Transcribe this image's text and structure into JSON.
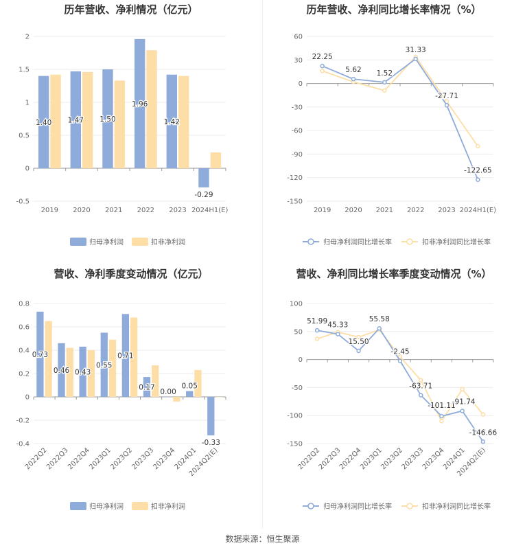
{
  "source": "数据来源：恒生聚源",
  "colors": {
    "blue": "#8eabd9",
    "orange": "#fddea6",
    "grid": "#ebebeb",
    "axis": "#999999"
  },
  "chart_data": [
    {
      "id": "annual-bar",
      "type": "bar",
      "title": "历年营收、净利情况（亿元）",
      "categories": [
        "2019",
        "2020",
        "2021",
        "2022",
        "2023",
        "2024H1(E)"
      ],
      "ylim": [
        -0.5,
        2
      ],
      "yticks": [
        2,
        1.5,
        1,
        0.5,
        0,
        -0.5
      ],
      "series": [
        {
          "name": "归母净利润",
          "color": "#8eabd9",
          "values": [
            1.4,
            1.47,
            1.5,
            1.96,
            1.42,
            -0.29
          ],
          "labels": [
            "1.40",
            "1.47",
            "1.50",
            "1.96",
            "1.42",
            "-0.29"
          ]
        },
        {
          "name": "扣非净利润",
          "color": "#fddea6",
          "values": [
            1.42,
            1.46,
            1.33,
            1.79,
            1.4,
            0.24
          ]
        }
      ]
    },
    {
      "id": "annual-line",
      "type": "line",
      "title": "历年营收、净利同比增长率情况（%）",
      "categories": [
        "2019",
        "2020",
        "2021",
        "2022",
        "2023",
        "2024H1(E)"
      ],
      "ylim": [
        -150,
        60
      ],
      "yticks": [
        60,
        30,
        0,
        -30,
        -60,
        -90,
        -120,
        -150
      ],
      "series": [
        {
          "name": "归母净利润同比增长率",
          "color": "#8eabd9",
          "values": [
            22.25,
            5.62,
            1.52,
            31.33,
            -27.71,
            -122.65
          ],
          "labels": [
            "22.25",
            "5.62",
            "1.52",
            "31.33",
            "-27.71",
            "-122.65"
          ]
        },
        {
          "name": "扣非净利润同比增长率",
          "color": "#fddea6",
          "values": [
            16,
            2,
            -9,
            34,
            -23,
            -80
          ]
        }
      ]
    },
    {
      "id": "quarter-bar",
      "type": "bar",
      "title": "营收、净利季度变动情况（亿元）",
      "categories": [
        "2022Q2",
        "2022Q3",
        "2022Q4",
        "2023Q1",
        "2023Q2",
        "2023Q3",
        "2023Q4",
        "2024Q1",
        "2024Q2(E)"
      ],
      "ylim": [
        -0.4,
        0.8
      ],
      "yticks": [
        0.8,
        0.6,
        0.4,
        0.2,
        0,
        -0.2,
        -0.4
      ],
      "series": [
        {
          "name": "归母净利润",
          "color": "#8eabd9",
          "values": [
            0.73,
            0.46,
            0.43,
            0.55,
            0.71,
            0.17,
            0.0,
            0.05,
            -0.33
          ],
          "labels": [
            "0.73",
            "0.46",
            "0.43",
            "0.55",
            "0.71",
            "0.17",
            "0.00",
            "0.05",
            "-0.33"
          ]
        },
        {
          "name": "扣非净利润",
          "color": "#fddea6",
          "values": [
            0.65,
            0.42,
            0.4,
            0.49,
            0.68,
            0.27,
            -0.04,
            0.23,
            0.0
          ]
        }
      ]
    },
    {
      "id": "quarter-line",
      "type": "line",
      "title": "营收、净利同比增长率季度变动情况（%）",
      "categories": [
        "2022Q2",
        "2022Q3",
        "2022Q4",
        "2023Q1",
        "2023Q2",
        "2023Q3",
        "2023Q4",
        "2024Q1",
        "2024Q2(E)"
      ],
      "ylim": [
        -150,
        100
      ],
      "yticks": [
        100,
        50,
        0,
        -50,
        -100,
        -150
      ],
      "series": [
        {
          "name": "归母净利润同比增长率",
          "color": "#8eabd9",
          "values": [
            51.99,
            45.33,
            15.5,
            55.58,
            -2.45,
            -63.71,
            -101.11,
            -91.74,
            -146.66
          ],
          "labels": [
            "51.99",
            "45.33",
            "15.50",
            "55.58",
            "-2.45",
            "-63.71",
            "-101.11",
            "-91.74",
            "-146.66"
          ]
        },
        {
          "name": "扣非净利润同比增长率",
          "color": "#fddea6",
          "values": [
            37,
            49,
            40,
            53,
            5,
            -37,
            -110,
            -53,
            -98
          ]
        }
      ]
    }
  ]
}
